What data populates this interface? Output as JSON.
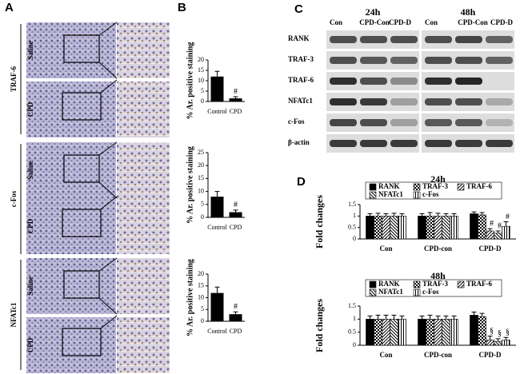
{
  "figure": {
    "panels": [
      "A",
      "B",
      "C",
      "D"
    ],
    "a_groups": [
      "TRAF-6",
      "c-Fos",
      "NFATc1"
    ],
    "a_conditions": [
      "Saline",
      "CPD"
    ],
    "c_times": [
      "24h",
      "48h"
    ],
    "c_lanes": [
      "Con",
      "CPD-Con",
      "CPD-D"
    ],
    "c_proteins": [
      "RANK",
      "TRAF-3",
      "TRAF-6",
      "NFATc1",
      "c-Fos",
      "β-actin"
    ]
  },
  "chart_data": [
    {
      "type": "bar",
      "ylabel": "% Ar. positive staining",
      "categories": [
        "Control",
        "CPD"
      ],
      "values": [
        12,
        1.5
      ],
      "errors": [
        2.5,
        0.8
      ],
      "color": "#000000",
      "ylim": [
        0,
        20
      ],
      "yticks": [
        0,
        5,
        10,
        15,
        20
      ],
      "annotations": [
        {
          "text": "#",
          "category": 1
        }
      ]
    },
    {
      "type": "bar",
      "ylabel": "% Ar. positive staining",
      "categories": [
        "Control",
        "CPD"
      ],
      "values": [
        8,
        2
      ],
      "errors": [
        2,
        0.8
      ],
      "color": "#000000",
      "ylim": [
        0,
        25
      ],
      "yticks": [
        0,
        5,
        10,
        15,
        20,
        25
      ],
      "annotations": [
        {
          "text": "#",
          "category": 1
        }
      ]
    },
    {
      "type": "bar",
      "ylabel": "% Ar. positive staining",
      "categories": [
        "Control",
        "CPD"
      ],
      "values": [
        12,
        3
      ],
      "errors": [
        2.5,
        1
      ],
      "color": "#000000",
      "ylim": [
        0,
        20
      ],
      "yticks": [
        0,
        5,
        10,
        15,
        20
      ],
      "annotations": [
        {
          "text": "#",
          "category": 1
        }
      ]
    },
    {
      "type": "grouped_bar",
      "title": "24h",
      "ylabel": "Fold changes",
      "categories": [
        "Con",
        "CPD-con",
        "CPD-D"
      ],
      "series": [
        {
          "name": "RANK",
          "pattern": "solid",
          "values": [
            1,
            1,
            1.1
          ],
          "errors": [
            0.1,
            0.1,
            0.08
          ]
        },
        {
          "name": "TRAF-3",
          "pattern": "checker",
          "values": [
            1,
            1,
            1.05
          ],
          "errors": [
            0.12,
            0.15,
            0.1
          ]
        },
        {
          "name": "TRAF-6",
          "pattern": "diag",
          "values": [
            1,
            1,
            0.35
          ],
          "errors": [
            0.1,
            0.12,
            0.1
          ]
        },
        {
          "name": "NFATc1",
          "pattern": "diag2",
          "values": [
            1,
            1,
            0.25
          ],
          "errors": [
            0.12,
            0.1,
            0.1
          ]
        },
        {
          "name": "c-Fos",
          "pattern": "vert",
          "values": [
            1,
            1,
            0.55
          ],
          "errors": [
            0.1,
            0.1,
            0.2
          ]
        }
      ],
      "ylim": [
        0,
        1.5
      ],
      "yticks": [
        0,
        0.5,
        1,
        1.5
      ],
      "annotations": [
        {
          "text": "#",
          "category": 2,
          "series": 2
        },
        {
          "text": "#",
          "category": 2,
          "series": 3
        },
        {
          "text": "#",
          "category": 2,
          "series": 4
        }
      ]
    },
    {
      "type": "grouped_bar",
      "title": "48h",
      "ylabel": "Fold changes",
      "categories": [
        "Con",
        "CPD-con",
        "CPD-D"
      ],
      "series": [
        {
          "name": "RANK",
          "pattern": "solid",
          "values": [
            1,
            1,
            1.15
          ],
          "errors": [
            0.12,
            0.12,
            0.12
          ]
        },
        {
          "name": "TRAF-3",
          "pattern": "checker",
          "values": [
            1,
            1,
            1.1
          ],
          "errors": [
            0.15,
            0.15,
            0.12
          ]
        },
        {
          "name": "TRAF-6",
          "pattern": "diag",
          "values": [
            1,
            1,
            0.2
          ],
          "errors": [
            0.15,
            0.12,
            0.15
          ]
        },
        {
          "name": "NFATc1",
          "pattern": "diag2",
          "values": [
            1,
            1,
            0.15
          ],
          "errors": [
            0.15,
            0.12,
            0.1
          ]
        },
        {
          "name": "c-Fos",
          "pattern": "vert",
          "values": [
            1,
            1,
            0.2
          ],
          "errors": [
            0.12,
            0.12,
            0.1
          ]
        }
      ],
      "ylim": [
        0,
        1.5
      ],
      "yticks": [
        0,
        0.5,
        1,
        1.5
      ],
      "annotations": [
        {
          "text": "§",
          "category": 2,
          "series": 2
        },
        {
          "text": "§",
          "category": 2,
          "series": 3
        },
        {
          "text": "§",
          "category": 2,
          "series": 4
        }
      ]
    }
  ]
}
